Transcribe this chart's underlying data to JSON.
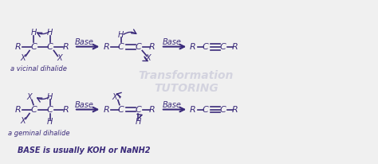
{
  "bg_color": "#f0f0f0",
  "text_color": "#3a2a7a",
  "watermark_color": "#c8c8d8",
  "watermark_text": "Transformation\nTUTORING",
  "bottom_note": "BASE is usually KOH or NaNH2",
  "label_vicinal": "a vicinal dihalide",
  "label_geminal": "a geminal dihalide",
  "fig_width": 4.74,
  "fig_height": 2.06,
  "dpi": 100
}
